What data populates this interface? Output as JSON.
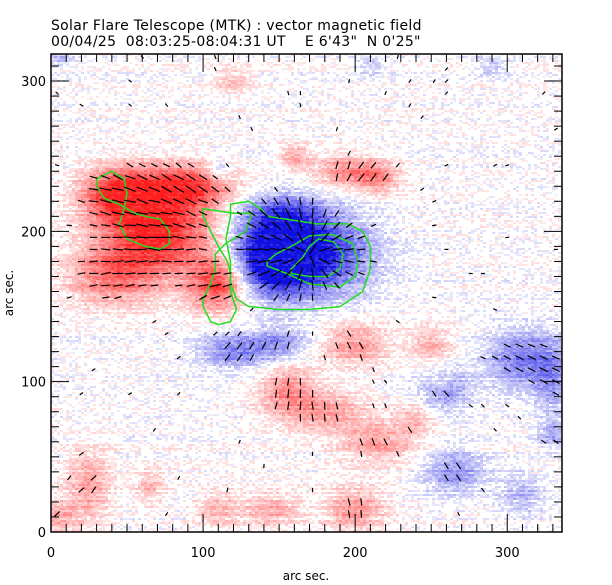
{
  "header": {
    "title": "Solar Flare Telescope (MTK) : vector magnetic field",
    "subtitle": "00/04/25  08:03:25-08:04:31 UT    E 6'43\"  N 0'25\""
  },
  "chart_data": {
    "type": "heatmap",
    "title": "Solar Flare Telescope (MTK) : vector magnetic field",
    "subtitle": "00/04/25  08:03:25-08:04:31 UT    E 6'43\"  N 0'25\"",
    "xlabel": "arc sec.",
    "ylabel": "arc sec.",
    "xlim": [
      0,
      336
    ],
    "ylim": [
      0,
      318
    ],
    "x_ticks": [
      0,
      100,
      200,
      300
    ],
    "y_ticks": [
      0,
      100,
      200,
      300
    ],
    "x_tick_labels": [
      "0",
      "100",
      "200",
      "300"
    ],
    "y_tick_labels": [
      "0",
      "100",
      "200",
      "300"
    ],
    "x_minor_step": 10,
    "y_minor_step": 10,
    "colors": {
      "positive": "#ff2020",
      "negative": "#1010e0",
      "contour": "#22dd22",
      "vector": "#000000",
      "noise_blue": "#9aa0ee",
      "noise_red": "#f4a0a0"
    },
    "positive_regions": [
      {
        "x": 70,
        "y": 200,
        "rx": 38,
        "ry": 30,
        "strength": 1.0
      },
      {
        "x": 45,
        "y": 225,
        "rx": 25,
        "ry": 18,
        "strength": 0.9
      },
      {
        "x": 90,
        "y": 230,
        "rx": 30,
        "ry": 15,
        "strength": 0.75
      },
      {
        "x": 110,
        "y": 165,
        "rx": 20,
        "ry": 18,
        "strength": 0.85
      },
      {
        "x": 40,
        "y": 170,
        "rx": 30,
        "ry": 20,
        "strength": 0.55
      },
      {
        "x": 195,
        "y": 240,
        "rx": 25,
        "ry": 12,
        "strength": 0.5
      },
      {
        "x": 215,
        "y": 235,
        "rx": 15,
        "ry": 10,
        "strength": 0.4
      },
      {
        "x": 160,
        "y": 250,
        "rx": 10,
        "ry": 8,
        "strength": 0.4
      },
      {
        "x": 200,
        "y": 125,
        "rx": 22,
        "ry": 15,
        "strength": 0.45
      },
      {
        "x": 155,
        "y": 95,
        "rx": 20,
        "ry": 18,
        "strength": 0.45
      },
      {
        "x": 180,
        "y": 80,
        "rx": 30,
        "ry": 15,
        "strength": 0.4
      },
      {
        "x": 215,
        "y": 60,
        "rx": 25,
        "ry": 15,
        "strength": 0.4
      },
      {
        "x": 200,
        "y": 15,
        "rx": 20,
        "ry": 15,
        "strength": 0.45
      },
      {
        "x": 145,
        "y": 15,
        "rx": 20,
        "ry": 12,
        "strength": 0.35
      },
      {
        "x": 25,
        "y": 30,
        "rx": 15,
        "ry": 25,
        "strength": 0.4
      },
      {
        "x": 5,
        "y": 10,
        "rx": 12,
        "ry": 12,
        "strength": 0.35
      },
      {
        "x": 65,
        "y": 30,
        "rx": 10,
        "ry": 12,
        "strength": 0.3
      },
      {
        "x": 110,
        "y": 15,
        "rx": 15,
        "ry": 12,
        "strength": 0.3
      },
      {
        "x": 120,
        "y": 300,
        "rx": 12,
        "ry": 8,
        "strength": 0.3
      },
      {
        "x": 250,
        "y": 125,
        "rx": 15,
        "ry": 12,
        "strength": 0.35
      },
      {
        "x": 240,
        "y": 75,
        "rx": 12,
        "ry": 12,
        "strength": 0.3
      },
      {
        "x": 255,
        "y": 100,
        "rx": 10,
        "ry": 8,
        "strength": 0.25
      }
    ],
    "negative_regions": [
      {
        "x": 170,
        "y": 185,
        "rx": 40,
        "ry": 28,
        "strength": 1.0
      },
      {
        "x": 145,
        "y": 180,
        "rx": 25,
        "ry": 22,
        "strength": 0.9
      },
      {
        "x": 150,
        "y": 210,
        "rx": 28,
        "ry": 15,
        "strength": 0.6
      },
      {
        "x": 120,
        "y": 120,
        "rx": 25,
        "ry": 12,
        "strength": 0.5
      },
      {
        "x": 150,
        "y": 125,
        "rx": 20,
        "ry": 12,
        "strength": 0.4
      },
      {
        "x": 310,
        "y": 115,
        "rx": 25,
        "ry": 20,
        "strength": 0.55
      },
      {
        "x": 330,
        "y": 100,
        "rx": 12,
        "ry": 25,
        "strength": 0.35
      },
      {
        "x": 258,
        "y": 95,
        "rx": 18,
        "ry": 15,
        "strength": 0.45
      },
      {
        "x": 265,
        "y": 40,
        "rx": 22,
        "ry": 15,
        "strength": 0.45
      },
      {
        "x": 110,
        "y": 240,
        "rx": 8,
        "ry": 8,
        "strength": 0.35
      },
      {
        "x": 210,
        "y": 310,
        "rx": 10,
        "ry": 6,
        "strength": 0.25
      },
      {
        "x": 290,
        "y": 310,
        "rx": 10,
        "ry": 8,
        "strength": 0.25
      },
      {
        "x": 5,
        "y": 315,
        "rx": 10,
        "ry": 6,
        "strength": 0.3
      },
      {
        "x": 310,
        "y": 25,
        "rx": 15,
        "ry": 15,
        "strength": 0.3
      },
      {
        "x": 330,
        "y": 65,
        "rx": 10,
        "ry": 10,
        "strength": 0.3
      }
    ],
    "contours": [
      [
        [
          30,
          235
        ],
        [
          40,
          240
        ],
        [
          48,
          235
        ],
        [
          50,
          225
        ],
        [
          48,
          215
        ],
        [
          45,
          205
        ],
        [
          50,
          195
        ],
        [
          62,
          190
        ],
        [
          72,
          188
        ],
        [
          78,
          192
        ],
        [
          78,
          200
        ],
        [
          72,
          208
        ],
        [
          62,
          210
        ],
        [
          55,
          212
        ],
        [
          45,
          218
        ],
        [
          35,
          222
        ],
        [
          30,
          230
        ]
      ],
      [
        [
          100,
          215
        ],
        [
          120,
          212
        ],
        [
          132,
          212
        ],
        [
          128,
          200
        ],
        [
          120,
          195
        ],
        [
          115,
          192
        ],
        [
          108,
          185
        ],
        [
          108,
          175
        ],
        [
          105,
          165
        ],
        [
          100,
          155
        ],
        [
          100,
          150
        ],
        [
          105,
          140
        ],
        [
          110,
          138
        ],
        [
          118,
          140
        ],
        [
          122,
          148
        ],
        [
          118,
          160
        ],
        [
          118,
          172
        ],
        [
          116,
          180
        ],
        [
          110,
          190
        ],
        [
          105,
          200
        ],
        [
          100,
          210
        ]
      ],
      [
        [
          118,
          218
        ],
        [
          130,
          220
        ],
        [
          138,
          215
        ],
        [
          142,
          210
        ],
        [
          155,
          208
        ],
        [
          175,
          205
        ],
        [
          195,
          205
        ],
        [
          205,
          200
        ],
        [
          210,
          190
        ],
        [
          210,
          175
        ],
        [
          205,
          160
        ],
        [
          190,
          150
        ],
        [
          170,
          148
        ],
        [
          150,
          148
        ],
        [
          130,
          150
        ],
        [
          122,
          155
        ],
        [
          118,
          165
        ],
        [
          118,
          180
        ],
        [
          115,
          195
        ],
        [
          118,
          210
        ]
      ],
      [
        [
          142,
          177
        ],
        [
          155,
          172
        ],
        [
          170,
          165
        ],
        [
          190,
          163
        ],
        [
          200,
          170
        ],
        [
          202,
          180
        ],
        [
          198,
          192
        ],
        [
          185,
          198
        ],
        [
          170,
          197
        ],
        [
          158,
          190
        ],
        [
          148,
          185
        ],
        [
          142,
          180
        ]
      ],
      [
        [
          158,
          172
        ],
        [
          170,
          170
        ],
        [
          182,
          170
        ],
        [
          190,
          175
        ],
        [
          192,
          185
        ],
        [
          186,
          193
        ],
        [
          176,
          195
        ],
        [
          170,
          190
        ],
        [
          165,
          182
        ],
        [
          158,
          175
        ]
      ]
    ],
    "vector_grid_step": 8
  }
}
